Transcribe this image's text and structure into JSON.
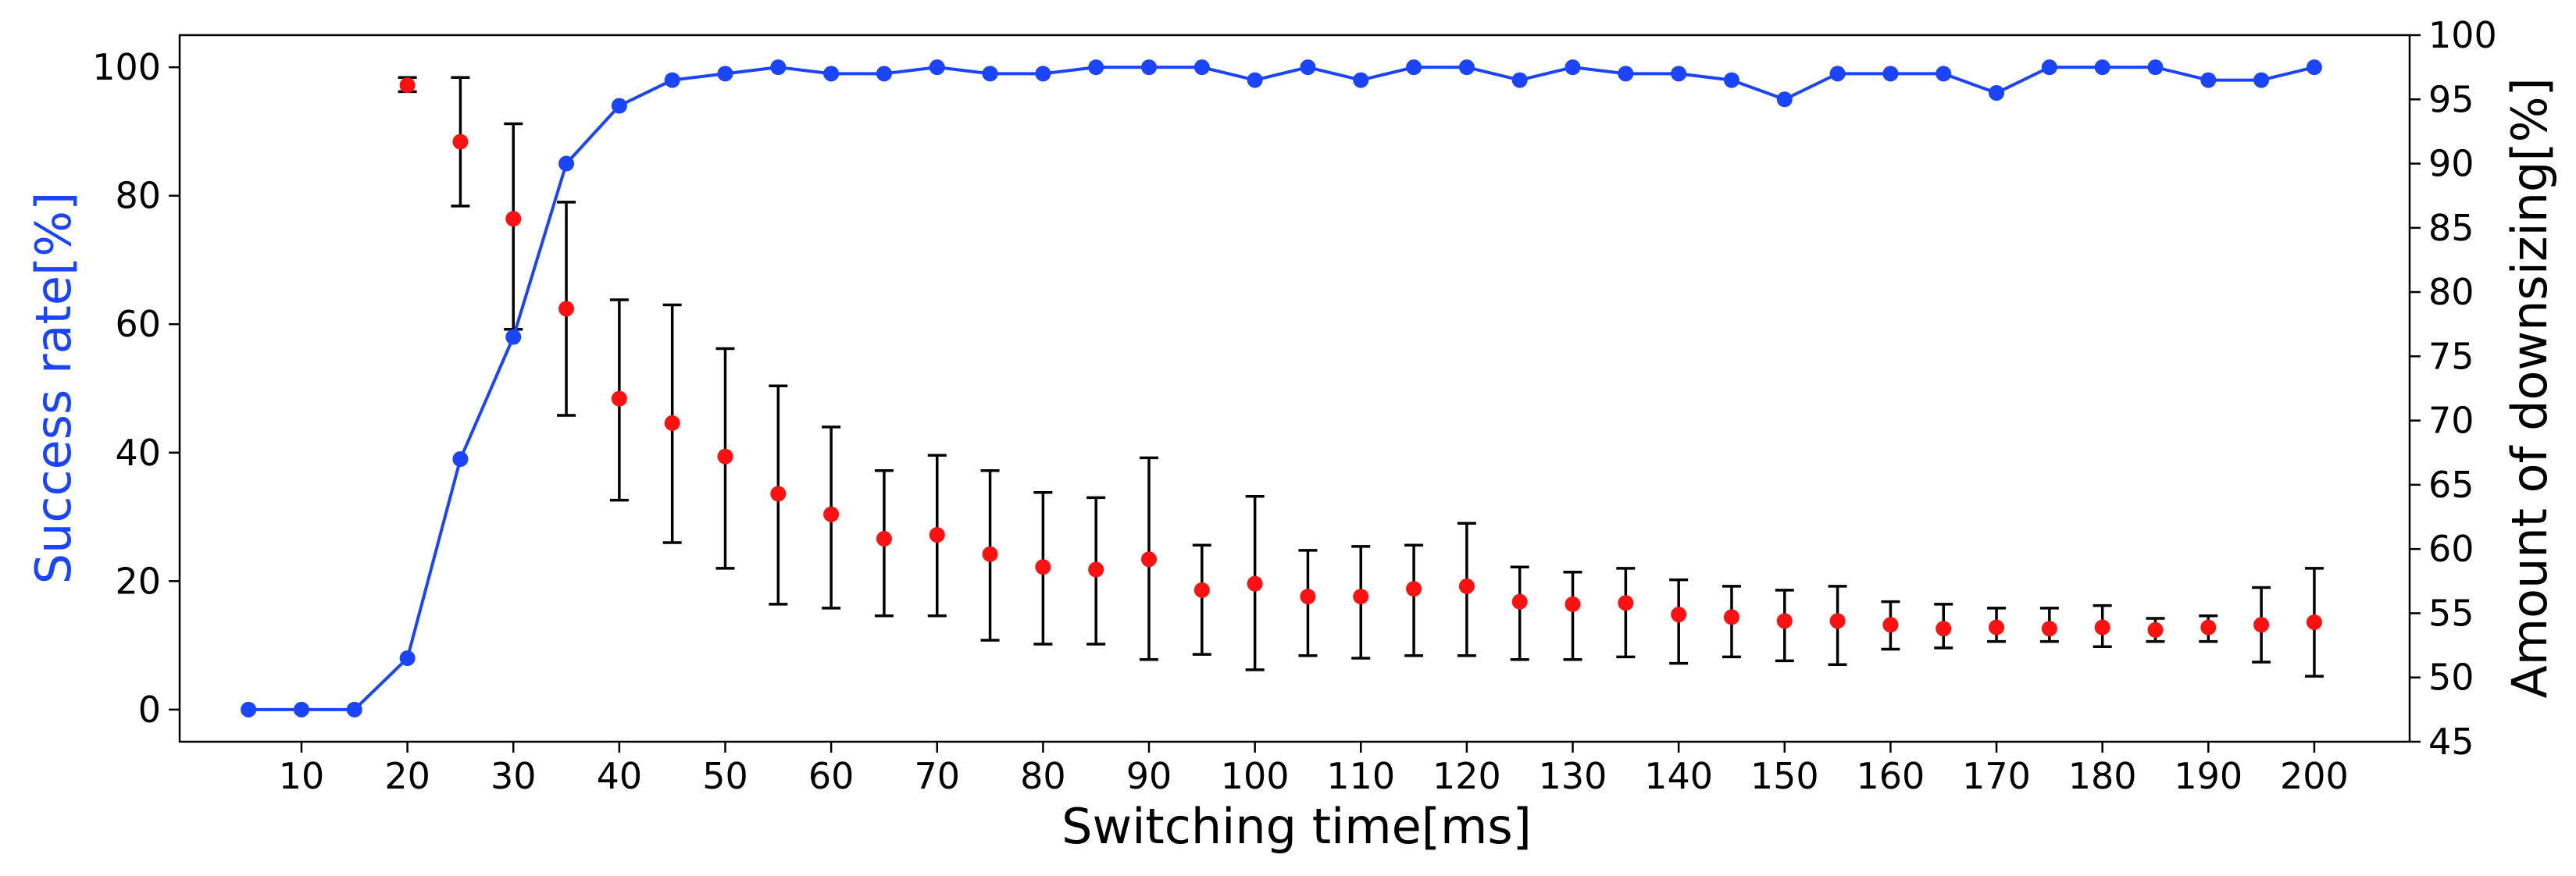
{
  "chart_data": {
    "type": "line",
    "title": "",
    "xlabel": "Switching time[ms]",
    "ylabel_left": "Success rate[%]",
    "ylabel_right": "Amount of downsizing[%]",
    "x_ticks": [
      "10",
      "20",
      "30",
      "40",
      "50",
      "60",
      "70",
      "80",
      "90",
      "100",
      "110",
      "120",
      "130",
      "140",
      "150",
      "160",
      "170",
      "180",
      "190",
      "200"
    ],
    "y_left_ticks": [
      "0",
      "20",
      "40",
      "60",
      "80",
      "100"
    ],
    "y_right_ticks": [
      "45",
      "50",
      "55",
      "60",
      "65",
      "70",
      "75",
      "80",
      "85",
      "90",
      "95",
      "100"
    ],
    "xlim": [
      -1.5,
      209
    ],
    "ylim_left": [
      -5,
      105
    ],
    "ylim_right": [
      45,
      100
    ],
    "grid": false,
    "colors": {
      "success": "#1a44ff",
      "downsizing": "#ff1111",
      "errorbar": "#000000",
      "left_label": "#1a44ff"
    },
    "series": [
      {
        "name": "Success rate",
        "axis": "left",
        "style": "line+markers",
        "x": [
          5,
          10,
          15,
          20,
          25,
          30,
          35,
          40,
          45,
          50,
          55,
          60,
          65,
          70,
          75,
          80,
          85,
          90,
          95,
          100,
          105,
          110,
          115,
          120,
          125,
          130,
          135,
          140,
          145,
          150,
          155,
          160,
          165,
          170,
          175,
          180,
          185,
          190,
          195,
          200
        ],
        "y": [
          0,
          0,
          0,
          8,
          39,
          58,
          85,
          94,
          98,
          99,
          100,
          99,
          99,
          100,
          99,
          99,
          100,
          100,
          100,
          98,
          100,
          98,
          100,
          100,
          98,
          100,
          99,
          99,
          98,
          95,
          99,
          99,
          99,
          96,
          100,
          100,
          100,
          98,
          98,
          100
        ]
      },
      {
        "name": "Amount of downsizing",
        "axis": "right",
        "style": "markers+errorbars",
        "x": [
          20,
          25,
          30,
          35,
          40,
          45,
          50,
          55,
          60,
          65,
          70,
          75,
          80,
          85,
          90,
          95,
          100,
          105,
          110,
          115,
          120,
          125,
          130,
          135,
          140,
          145,
          150,
          155,
          160,
          165,
          170,
          175,
          180,
          185,
          190,
          195,
          200
        ],
        "y": [
          96.1,
          91.7,
          85.7,
          78.7,
          71.7,
          69.8,
          67.2,
          64.3,
          62.7,
          60.8,
          61.1,
          59.6,
          58.6,
          58.4,
          59.2,
          56.8,
          57.3,
          56.3,
          56.3,
          56.9,
          57.1,
          55.9,
          55.7,
          55.8,
          54.9,
          54.7,
          54.4,
          54.4,
          54.1,
          53.8,
          53.9,
          53.8,
          53.9,
          53.7,
          53.9,
          54.1,
          54.3
        ],
        "err_low": [
          95.6,
          86.7,
          77.1,
          70.4,
          63.8,
          60.5,
          58.5,
          55.7,
          55.4,
          54.8,
          54.8,
          52.9,
          52.6,
          52.6,
          51.4,
          51.8,
          50.6,
          51.7,
          51.5,
          51.7,
          51.7,
          51.4,
          51.4,
          51.6,
          51.1,
          51.6,
          51.3,
          51.0,
          52.2,
          52.3,
          52.8,
          52.8,
          52.4,
          52.8,
          52.8,
          51.2,
          50.1
        ],
        "err_high": [
          96.7,
          96.7,
          93.1,
          87.0,
          79.4,
          79.0,
          75.6,
          72.7,
          69.5,
          66.1,
          67.3,
          66.1,
          64.4,
          64.0,
          67.1,
          60.3,
          64.1,
          59.9,
          60.2,
          60.3,
          62.0,
          58.6,
          58.2,
          58.5,
          57.6,
          57.1,
          56.8,
          57.1,
          55.9,
          55.7,
          55.4,
          55.4,
          55.6,
          54.6,
          54.8,
          57.0,
          58.5
        ]
      }
    ]
  }
}
